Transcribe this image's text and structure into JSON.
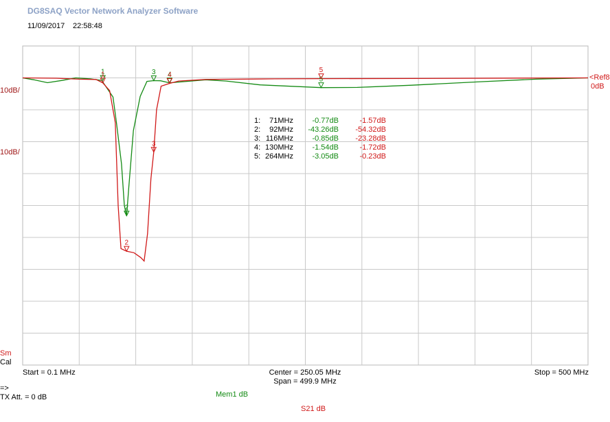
{
  "header": {
    "title": "DG8SAQ Vector Network Analyzer Software",
    "date": "11/09/2017",
    "time": "22:58:48"
  },
  "chart_data": {
    "type": "line",
    "xlim": [
      0.1,
      500
    ],
    "ylim": [
      -90,
      10
    ],
    "xgrid": [
      50.09,
      100.08,
      150.07,
      200.06,
      250.05,
      300.04,
      350.03,
      400.02,
      450.01
    ],
    "ygrid": [
      0,
      -10,
      -20,
      -30,
      -40,
      -50,
      -60,
      -70,
      -80
    ],
    "scale_labels": [
      "10dB/",
      "10dB/"
    ],
    "ref_labels": [
      "<Ref8",
      "0dB"
    ],
    "side_labels": [
      "Sm",
      "Cal"
    ],
    "series": [
      {
        "name": "Mem1 dB",
        "color": "#138a13",
        "x": [
          0.1,
          10,
          22,
          35,
          47,
          60,
          70,
          80,
          83,
          87.5,
          90,
          92,
          94,
          98,
          104,
          110,
          116,
          122,
          130,
          162,
          180,
          210,
          264,
          296,
          344,
          405,
          454,
          500
        ],
        "values": [
          0,
          -0.6,
          -1.5,
          -0.8,
          0,
          -0.3,
          -0.8,
          -6,
          -14,
          -27,
          -40,
          -43.26,
          -34,
          -16.5,
          -5.8,
          -1.1,
          -0.85,
          -0.9,
          -1.54,
          -0.6,
          -1,
          -2.2,
          -3.05,
          -3,
          -2.3,
          -1.2,
          -0.4,
          0
        ]
      },
      {
        "name": "S21  dB",
        "color": "#d01818",
        "x": [
          0.1,
          30,
          50,
          65,
          71,
          77,
          82,
          84.5,
          87,
          92,
          98.5,
          104.5,
          107.5,
          110.5,
          113.5,
          116,
          118.5,
          122.5,
          130,
          138,
          162,
          223,
          264,
          344,
          500
        ],
        "values": [
          0,
          -0.1,
          -0.4,
          -0.5,
          -1.57,
          -4,
          -14,
          -40,
          -53.5,
          -54.32,
          -54.8,
          -56.3,
          -57.4,
          -48.8,
          -31.6,
          -23.28,
          -10,
          -2.6,
          -1.72,
          -1,
          -0.5,
          -0.3,
          -0.23,
          -0.2,
          0
        ]
      }
    ],
    "markers": [
      {
        "label": "1",
        "row_label": "1:",
        "x": 71,
        "x_label": "71MHz",
        "mem1": -0.77,
        "mem1_label": "-0.77dB",
        "s21": -1.57,
        "s21_label": "-1.57dB"
      },
      {
        "label": "2",
        "row_label": "2:",
        "x": 92,
        "x_label": "92MHz",
        "mem1": -43.26,
        "mem1_label": "-43.26dB",
        "s21": -54.32,
        "s21_label": "-54.32dB"
      },
      {
        "label": "3",
        "row_label": "3:",
        "x": 116,
        "x_label": "116MHz",
        "mem1": -0.85,
        "mem1_label": "-0.85dB",
        "s21": -23.28,
        "s21_label": "-23.28dB"
      },
      {
        "label": "4",
        "row_label": "4:",
        "x": 130,
        "x_label": "130MHz",
        "mem1": -1.54,
        "mem1_label": "-1.54dB",
        "s21": -1.72,
        "s21_label": "-1.72dB"
      },
      {
        "label": "5",
        "row_label": "5:",
        "x": 264,
        "x_label": "264MHz",
        "mem1": -3.05,
        "mem1_label": "-3.05dB",
        "s21": -0.23,
        "s21_label": "-0.23dB"
      }
    ]
  },
  "footer": {
    "start": "Start = 0.1 MHz",
    "center": "Center = 250.05 MHz",
    "span": "Span = 499.9 MHz",
    "stop": "Stop = 500 MHz",
    "arrow": "=>",
    "tx_att": "TX Att.  = 0 dB"
  }
}
